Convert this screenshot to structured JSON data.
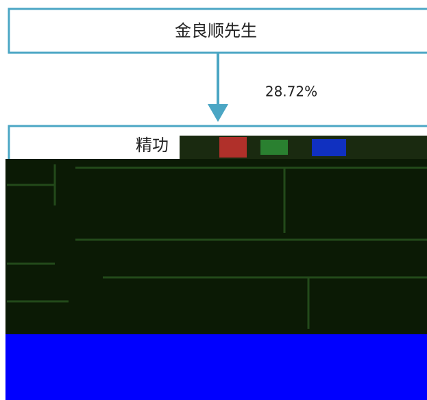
{
  "nodes": [
    {
      "label": "金良顺先生"
    },
    {
      "label": "精功"
    }
  ],
  "edges": [
    {
      "label": "28.72%"
    }
  ]
}
